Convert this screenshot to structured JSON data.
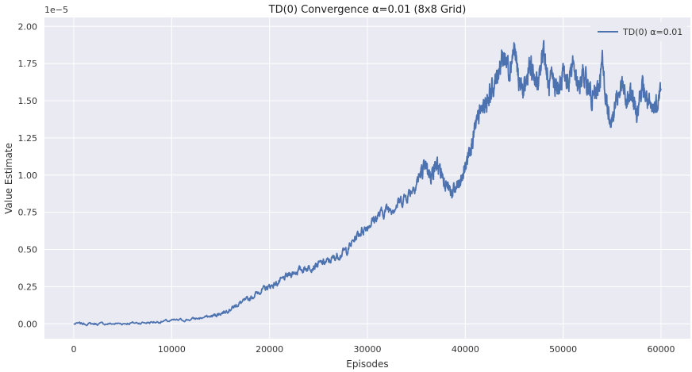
{
  "chart_data": {
    "type": "line",
    "title": "TD(0) Convergence α=0.01 (8x8 Grid)",
    "xlabel": "Episodes",
    "ylabel": "Value Estimate",
    "y_offset_label": "1e−5",
    "xlim": [
      -3000,
      63000
    ],
    "ylim": [
      -0.1,
      2.06
    ],
    "x_ticks": [
      0,
      10000,
      20000,
      30000,
      40000,
      50000,
      60000
    ],
    "x_tick_labels": [
      "0",
      "10000",
      "20000",
      "30000",
      "40000",
      "50000",
      "60000"
    ],
    "y_ticks": [
      0.0,
      0.25,
      0.5,
      0.75,
      1.0,
      1.25,
      1.5,
      1.75,
      2.0
    ],
    "y_tick_labels": [
      "0.00",
      "0.25",
      "0.50",
      "0.75",
      "1.00",
      "1.25",
      "1.50",
      "1.75",
      "2.00"
    ],
    "grid": true,
    "legend_position": "top-right",
    "series": [
      {
        "name": "TD(0) α=0.01",
        "color": "#4c72b0",
        "x": [
          0,
          2000,
          4000,
          6000,
          8000,
          10000,
          12000,
          14000,
          15000,
          16000,
          17000,
          18000,
          19000,
          20000,
          21000,
          22000,
          23000,
          24000,
          25000,
          26000,
          27000,
          28000,
          29000,
          30000,
          31000,
          32000,
          33000,
          34000,
          35000,
          35500,
          36000,
          36500,
          37000,
          37500,
          38000,
          38500,
          39000,
          39500,
          40000,
          40500,
          41000,
          41500,
          42000,
          42500,
          43000,
          43500,
          44000,
          44500,
          45000,
          45500,
          46000,
          46500,
          47000,
          47500,
          48000,
          48500,
          49000,
          49500,
          50000,
          50500,
          51000,
          51500,
          52000,
          52500,
          53000,
          53500,
          54000,
          54500,
          55000,
          55500,
          56000,
          56500,
          57000,
          57500,
          58000,
          58500,
          59000,
          59500,
          60000
        ],
        "y": [
          0.0,
          0.0,
          0.0,
          0.005,
          0.01,
          0.02,
          0.03,
          0.05,
          0.07,
          0.1,
          0.14,
          0.17,
          0.22,
          0.25,
          0.28,
          0.33,
          0.36,
          0.38,
          0.4,
          0.42,
          0.46,
          0.5,
          0.6,
          0.66,
          0.72,
          0.77,
          0.8,
          0.86,
          0.95,
          1.02,
          1.05,
          1.0,
          1.07,
          1.02,
          0.95,
          0.88,
          0.9,
          0.95,
          1.05,
          1.2,
          1.3,
          1.42,
          1.48,
          1.55,
          1.6,
          1.75,
          1.8,
          1.72,
          1.85,
          1.62,
          1.55,
          1.72,
          1.68,
          1.6,
          1.88,
          1.58,
          1.65,
          1.55,
          1.7,
          1.62,
          1.78,
          1.55,
          1.68,
          1.6,
          1.52,
          1.55,
          1.75,
          1.45,
          1.38,
          1.52,
          1.6,
          1.48,
          1.55,
          1.42,
          1.6,
          1.52,
          1.42,
          1.48,
          1.58
        ]
      }
    ]
  }
}
